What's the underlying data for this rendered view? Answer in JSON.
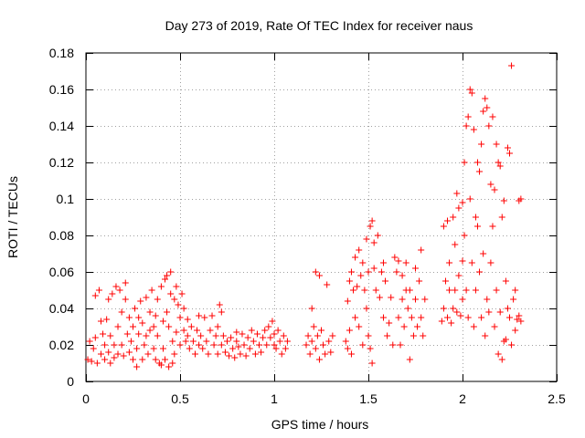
{
  "chart_data": {
    "type": "scatter",
    "title": "Day 273 of 2019, Rate Of TEC Index for receiver naus",
    "xlabel": "GPS time / hours",
    "ylabel": "ROTI / TECUs",
    "xlim": [
      0,
      2.5
    ],
    "ylim": [
      0,
      0.18
    ],
    "xticks": [
      0,
      0.5,
      1,
      1.5,
      2,
      2.5
    ],
    "xtick_labels": [
      "0",
      "0.5",
      "1",
      "1.5",
      "2",
      "2.5"
    ],
    "yticks": [
      0,
      0.02,
      0.04,
      0.06,
      0.08,
      0.1,
      0.12,
      0.14,
      0.16,
      0.18
    ],
    "ytick_labels": [
      "0",
      "0.02",
      "0.04",
      "0.06",
      "0.08",
      "0.1",
      "0.12",
      "0.14",
      "0.16",
      "0.18"
    ],
    "grid": true,
    "marker": "+",
    "series": [
      {
        "name": "ROTI",
        "color": "#ff0000",
        "points": [
          [
            0.01,
            0.012
          ],
          [
            0.02,
            0.022
          ],
          [
            0.03,
            0.011
          ],
          [
            0.04,
            0.018
          ],
          [
            0.05,
            0.047
          ],
          [
            0.05,
            0.024
          ],
          [
            0.06,
            0.01
          ],
          [
            0.07,
            0.05
          ],
          [
            0.08,
            0.015
          ],
          [
            0.08,
            0.033
          ],
          [
            0.09,
            0.026
          ],
          [
            0.1,
            0.012
          ],
          [
            0.1,
            0.02
          ],
          [
            0.11,
            0.034
          ],
          [
            0.12,
            0.045
          ],
          [
            0.12,
            0.016
          ],
          [
            0.13,
            0.01
          ],
          [
            0.13,
            0.025
          ],
          [
            0.14,
            0.048
          ],
          [
            0.15,
            0.02
          ],
          [
            0.15,
            0.013
          ],
          [
            0.16,
            0.052
          ],
          [
            0.17,
            0.03
          ],
          [
            0.17,
            0.015
          ],
          [
            0.18,
            0.05
          ],
          [
            0.19,
            0.038
          ],
          [
            0.19,
            0.02
          ],
          [
            0.2,
            0.014
          ],
          [
            0.21,
            0.054
          ],
          [
            0.21,
            0.045
          ],
          [
            0.22,
            0.026
          ],
          [
            0.23,
            0.016
          ],
          [
            0.23,
            0.035
          ],
          [
            0.24,
            0.022
          ],
          [
            0.25,
            0.012
          ],
          [
            0.25,
            0.03
          ],
          [
            0.26,
            0.04
          ],
          [
            0.27,
            0.008
          ],
          [
            0.27,
            0.018
          ],
          [
            0.28,
            0.035
          ],
          [
            0.28,
            0.026
          ],
          [
            0.29,
            0.044
          ],
          [
            0.3,
            0.012
          ],
          [
            0.3,
            0.032
          ],
          [
            0.31,
            0.02
          ],
          [
            0.32,
            0.046
          ],
          [
            0.32,
            0.025
          ],
          [
            0.33,
            0.015
          ],
          [
            0.34,
            0.038
          ],
          [
            0.34,
            0.028
          ],
          [
            0.35,
            0.05
          ],
          [
            0.36,
            0.03
          ],
          [
            0.36,
            0.018
          ],
          [
            0.37,
            0.012
          ],
          [
            0.37,
            0.036
          ],
          [
            0.38,
            0.045
          ],
          [
            0.38,
            0.025
          ],
          [
            0.39,
            0.01
          ],
          [
            0.4,
            0.009
          ],
          [
            0.4,
            0.052
          ],
          [
            0.41,
            0.033
          ],
          [
            0.41,
            0.018
          ],
          [
            0.42,
            0.056
          ],
          [
            0.42,
            0.012
          ],
          [
            0.43,
            0.058
          ],
          [
            0.43,
            0.038
          ],
          [
            0.44,
            0.008
          ],
          [
            0.44,
            0.03
          ],
          [
            0.45,
            0.06
          ],
          [
            0.45,
            0.048
          ],
          [
            0.46,
            0.01
          ],
          [
            0.46,
            0.022
          ],
          [
            0.47,
            0.045
          ],
          [
            0.47,
            0.015
          ],
          [
            0.48,
            0.052
          ],
          [
            0.48,
            0.027
          ],
          [
            0.49,
            0.042
          ],
          [
            0.5,
            0.035
          ],
          [
            0.5,
            0.02
          ],
          [
            0.51,
            0.048
          ],
          [
            0.52,
            0.028
          ],
          [
            0.52,
            0.04
          ],
          [
            0.53,
            0.022
          ],
          [
            0.54,
            0.034
          ],
          [
            0.54,
            0.025
          ],
          [
            0.55,
            0.018
          ],
          [
            0.56,
            0.03
          ],
          [
            0.57,
            0.022
          ],
          [
            0.58,
            0.015
          ],
          [
            0.59,
            0.028
          ],
          [
            0.6,
            0.036
          ],
          [
            0.6,
            0.02
          ],
          [
            0.61,
            0.025
          ],
          [
            0.62,
            0.018
          ],
          [
            0.63,
            0.035
          ],
          [
            0.64,
            0.022
          ],
          [
            0.65,
            0.015
          ],
          [
            0.66,
            0.028
          ],
          [
            0.67,
            0.036
          ],
          [
            0.68,
            0.02
          ],
          [
            0.69,
            0.025
          ],
          [
            0.7,
            0.015
          ],
          [
            0.7,
            0.03
          ],
          [
            0.71,
            0.042
          ],
          [
            0.72,
            0.038
          ],
          [
            0.72,
            0.02
          ],
          [
            0.73,
            0.025
          ],
          [
            0.74,
            0.016
          ],
          [
            0.75,
            0.022
          ],
          [
            0.76,
            0.014
          ],
          [
            0.77,
            0.024
          ],
          [
            0.78,
            0.018
          ],
          [
            0.79,
            0.013
          ],
          [
            0.8,
            0.022
          ],
          [
            0.8,
            0.027
          ],
          [
            0.81,
            0.019
          ],
          [
            0.82,
            0.015
          ],
          [
            0.83,
            0.026
          ],
          [
            0.84,
            0.02
          ],
          [
            0.85,
            0.014
          ],
          [
            0.86,
            0.024
          ],
          [
            0.87,
            0.018
          ],
          [
            0.88,
            0.028
          ],
          [
            0.89,
            0.022
          ],
          [
            0.9,
            0.015
          ],
          [
            0.91,
            0.026
          ],
          [
            0.92,
            0.02
          ],
          [
            0.93,
            0.016
          ],
          [
            0.94,
            0.024
          ],
          [
            0.95,
            0.028
          ],
          [
            0.96,
            0.02
          ],
          [
            0.97,
            0.03
          ],
          [
            0.98,
            0.024
          ],
          [
            0.99,
            0.033
          ],
          [
            1.0,
            0.026
          ],
          [
            1.0,
            0.02
          ],
          [
            1.01,
            0.018
          ],
          [
            1.02,
            0.028
          ],
          [
            1.03,
            0.022
          ],
          [
            1.04,
            0.015
          ],
          [
            1.05,
            0.025
          ],
          [
            1.06,
            0.018
          ],
          [
            1.07,
            0.022
          ],
          [
            1.17,
            0.02
          ],
          [
            1.18,
            0.025
          ],
          [
            1.19,
            0.015
          ],
          [
            1.2,
            0.022
          ],
          [
            1.2,
            0.04
          ],
          [
            1.21,
            0.03
          ],
          [
            1.22,
            0.06
          ],
          [
            1.22,
            0.018
          ],
          [
            1.23,
            0.025
          ],
          [
            1.24,
            0.058
          ],
          [
            1.24,
            0.012
          ],
          [
            1.25,
            0.028
          ],
          [
            1.26,
            0.02
          ],
          [
            1.27,
            0.015
          ],
          [
            1.28,
            0.053
          ],
          [
            1.29,
            0.022
          ],
          [
            1.3,
            0.016
          ],
          [
            1.31,
            0.025
          ],
          [
            1.38,
            0.022
          ],
          [
            1.39,
            0.018
          ],
          [
            1.39,
            0.044
          ],
          [
            1.4,
            0.055
          ],
          [
            1.4,
            0.028
          ],
          [
            1.41,
            0.015
          ],
          [
            1.41,
            0.06
          ],
          [
            1.42,
            0.05
          ],
          [
            1.43,
            0.035
          ],
          [
            1.43,
            0.068
          ],
          [
            1.44,
            0.052
          ],
          [
            1.45,
            0.03
          ],
          [
            1.45,
            0.072
          ],
          [
            1.46,
            0.058
          ],
          [
            1.47,
            0.02
          ],
          [
            1.47,
            0.065
          ],
          [
            1.48,
            0.05
          ],
          [
            1.49,
            0.04
          ],
          [
            1.49,
            0.078
          ],
          [
            1.5,
            0.06
          ],
          [
            1.5,
            0.025
          ],
          [
            1.51,
            0.085
          ],
          [
            1.51,
            0.018
          ],
          [
            1.52,
            0.088
          ],
          [
            1.52,
            0.01
          ],
          [
            1.53,
            0.062
          ],
          [
            1.53,
            0.076
          ],
          [
            1.54,
            0.05
          ],
          [
            1.55,
            0.08
          ],
          [
            1.56,
            0.046
          ],
          [
            1.57,
            0.06
          ],
          [
            1.58,
            0.035
          ],
          [
            1.58,
            0.065
          ],
          [
            1.59,
            0.055
          ],
          [
            1.6,
            0.025
          ],
          [
            1.61,
            0.032
          ],
          [
            1.62,
            0.046
          ],
          [
            1.63,
            0.02
          ],
          [
            1.64,
            0.068
          ],
          [
            1.65,
            0.06
          ],
          [
            1.66,
            0.035
          ],
          [
            1.66,
            0.066
          ],
          [
            1.67,
            0.02
          ],
          [
            1.68,
            0.045
          ],
          [
            1.68,
            0.058
          ],
          [
            1.69,
            0.03
          ],
          [
            1.7,
            0.065
          ],
          [
            1.7,
            0.05
          ],
          [
            1.71,
            0.04
          ],
          [
            1.72,
            0.012
          ],
          [
            1.72,
            0.05
          ],
          [
            1.73,
            0.035
          ],
          [
            1.74,
            0.025
          ],
          [
            1.75,
            0.045
          ],
          [
            1.75,
            0.062
          ],
          [
            1.76,
            0.03
          ],
          [
            1.77,
            0.055
          ],
          [
            1.78,
            0.072
          ],
          [
            1.78,
            0.035
          ],
          [
            1.79,
            0.025
          ],
          [
            1.8,
            0.045
          ],
          [
            1.89,
            0.033
          ],
          [
            1.9,
            0.085
          ],
          [
            1.9,
            0.04
          ],
          [
            1.91,
            0.055
          ],
          [
            1.92,
            0.088
          ],
          [
            1.92,
            0.035
          ],
          [
            1.93,
            0.065
          ],
          [
            1.93,
            0.05
          ],
          [
            1.94,
            0.032
          ],
          [
            1.95,
            0.09
          ],
          [
            1.95,
            0.04
          ],
          [
            1.96,
            0.075
          ],
          [
            1.96,
            0.05
          ],
          [
            1.97,
            0.103
          ],
          [
            1.97,
            0.038
          ],
          [
            1.98,
            0.095
          ],
          [
            1.98,
            0.058
          ],
          [
            1.99,
            0.036
          ],
          [
            2.0,
            0.098
          ],
          [
            2.0,
            0.066
          ],
          [
            2.0,
            0.045
          ],
          [
            2.01,
            0.12
          ],
          [
            2.01,
            0.08
          ],
          [
            2.02,
            0.14
          ],
          [
            2.02,
            0.05
          ],
          [
            2.03,
            0.145
          ],
          [
            2.03,
            0.035
          ],
          [
            2.04,
            0.16
          ],
          [
            2.04,
            0.1
          ],
          [
            2.05,
            0.158
          ],
          [
            2.05,
            0.065
          ],
          [
            2.06,
            0.138
          ],
          [
            2.06,
            0.03
          ],
          [
            2.07,
            0.09
          ],
          [
            2.07,
            0.05
          ],
          [
            2.08,
            0.085
          ],
          [
            2.08,
            0.12
          ],
          [
            2.09,
            0.115
          ],
          [
            2.09,
            0.06
          ],
          [
            2.1,
            0.13
          ],
          [
            2.1,
            0.035
          ],
          [
            2.11,
            0.148
          ],
          [
            2.11,
            0.07
          ],
          [
            2.12,
            0.155
          ],
          [
            2.12,
            0.025
          ],
          [
            2.13,
            0.15
          ],
          [
            2.13,
            0.045
          ],
          [
            2.14,
            0.14
          ],
          [
            2.14,
            0.038
          ],
          [
            2.15,
            0.108
          ],
          [
            2.15,
            0.065
          ],
          [
            2.16,
            0.145
          ],
          [
            2.16,
            0.085
          ],
          [
            2.17,
            0.105
          ],
          [
            2.17,
            0.03
          ],
          [
            2.18,
            0.13
          ],
          [
            2.18,
            0.05
          ],
          [
            2.19,
            0.12
          ],
          [
            2.19,
            0.015
          ],
          [
            2.2,
            0.118
          ],
          [
            2.2,
            0.038
          ],
          [
            2.21,
            0.09
          ],
          [
            2.21,
            0.012
          ],
          [
            2.22,
            0.099
          ],
          [
            2.22,
            0.022
          ],
          [
            2.23,
            0.023
          ],
          [
            2.23,
            0.055
          ],
          [
            2.24,
            0.128
          ],
          [
            2.24,
            0.04
          ],
          [
            2.25,
            0.125
          ],
          [
            2.25,
            0.035
          ],
          [
            2.26,
            0.02
          ],
          [
            2.26,
            0.173
          ],
          [
            2.27,
            0.045
          ],
          [
            2.28,
            0.028
          ],
          [
            2.28,
            0.05
          ],
          [
            2.29,
            0.034
          ],
          [
            2.3,
            0.099
          ],
          [
            2.3,
            0.036
          ],
          [
            2.31,
            0.1
          ],
          [
            2.31,
            0.033
          ]
        ]
      }
    ]
  }
}
